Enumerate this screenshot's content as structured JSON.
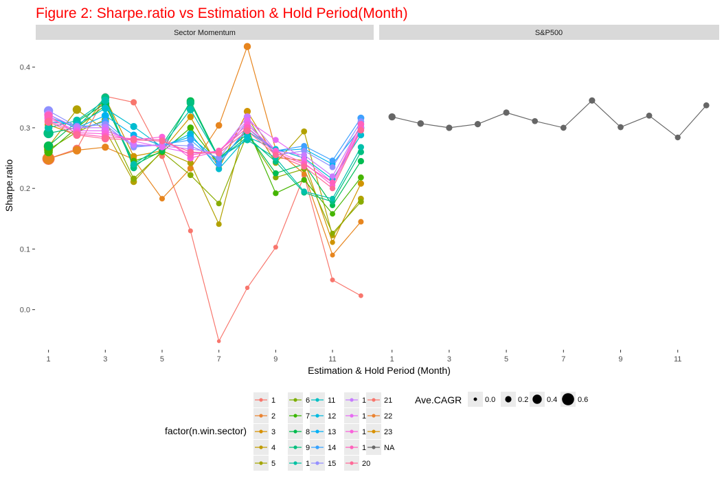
{
  "title": "Figure 2: Sharpe.ratio vs Estimation & Hold Period(Month)",
  "colors": {
    "title": "#ff0000",
    "strip_bg": "#d9d9d9",
    "legend_key_bg": "#ebebeb",
    "na_series": "#666666"
  },
  "chart_data": {
    "type": "line",
    "facets": [
      "Sector Momentum",
      "S&P500"
    ],
    "xlabel": "Estimation & Hold Period (Month)",
    "ylabel": "Sharpe.ratio",
    "x": [
      1,
      2,
      3,
      4,
      5,
      6,
      7,
      8,
      9,
      10,
      11,
      12
    ],
    "x_ticks": [
      "1",
      "3",
      "5",
      "7",
      "9",
      "11"
    ],
    "y_ticks": [
      "0.0",
      "0.1",
      "0.2",
      "0.3",
      "0.4"
    ],
    "xlim": [
      0.55,
      12.45
    ],
    "ylim": [
      -0.065,
      0.445
    ],
    "grid": false,
    "legend_position": "bottom",
    "color_legend_title": "factor(n.win.sector)",
    "size_legend_title": "Ave.CAGR",
    "size_legend_labels": [
      "0.0",
      "0.2",
      "0.4",
      "0.6"
    ],
    "series": [
      {
        "name": "1",
        "facet": "Sector Momentum",
        "color": "#F8766D",
        "values": [
          0.249,
          0.265,
          0.352,
          0.342,
          0.253,
          0.13,
          -0.052,
          0.036,
          0.103,
          0.221,
          0.049,
          0.023
        ],
        "cagr": [
          0.62,
          0.35,
          0.2,
          0.2,
          0.15,
          0.1,
          0.03,
          0.07,
          0.1,
          0.12,
          0.1,
          0.09
        ]
      },
      {
        "name": "2",
        "facet": "Sector Momentum",
        "color": "#E7851E",
        "values": [
          0.249,
          0.263,
          0.268,
          0.248,
          0.183,
          0.233,
          0.304,
          0.434,
          0.264,
          0.224,
          0.09,
          0.145
        ],
        "cagr": [
          0.55,
          0.35,
          0.26,
          0.2,
          0.15,
          0.2,
          0.22,
          0.26,
          0.15,
          0.12,
          0.1,
          0.15
        ]
      },
      {
        "name": "3",
        "facet": "Sector Momentum",
        "color": "#D09400",
        "values": [
          0.305,
          0.288,
          0.349,
          0.253,
          0.262,
          0.318,
          0.233,
          0.327,
          0.251,
          0.246,
          0.111,
          0.208
        ],
        "cagr": [
          0.3,
          0.28,
          0.3,
          0.22,
          0.2,
          0.22,
          0.2,
          0.25,
          0.18,
          0.15,
          0.12,
          0.2
        ]
      },
      {
        "name": "4",
        "facet": "Sector Momentum",
        "color": "#B2A100",
        "values": [
          0.269,
          0.33,
          0.296,
          0.211,
          0.262,
          0.242,
          0.141,
          0.318,
          0.242,
          0.294,
          0.122,
          0.183
        ],
        "cagr": [
          0.42,
          0.35,
          0.28,
          0.22,
          0.2,
          0.2,
          0.15,
          0.24,
          0.17,
          0.18,
          0.12,
          0.18
        ]
      },
      {
        "name": "5",
        "facet": "Sector Momentum",
        "color": "#89AC00",
        "values": [
          0.264,
          0.293,
          0.313,
          0.216,
          0.26,
          0.222,
          0.175,
          0.29,
          0.218,
          0.232,
          0.126,
          0.178
        ],
        "cagr": [
          0.38,
          0.3,
          0.28,
          0.2,
          0.2,
          0.18,
          0.15,
          0.22,
          0.16,
          0.16,
          0.12,
          0.17
        ]
      },
      {
        "name": "6",
        "facet": "Sector Momentum",
        "color": "#45B500",
        "values": [
          0.26,
          0.3,
          0.337,
          0.245,
          0.26,
          0.3,
          0.24,
          0.3,
          0.192,
          0.214,
          0.158,
          0.218
        ],
        "cagr": [
          0.35,
          0.3,
          0.3,
          0.22,
          0.2,
          0.22,
          0.18,
          0.22,
          0.16,
          0.16,
          0.14,
          0.18
        ]
      },
      {
        "name": "7",
        "facet": "Sector Momentum",
        "color": "#00BC51",
        "values": [
          0.27,
          0.31,
          0.34,
          0.238,
          0.262,
          0.344,
          0.25,
          0.29,
          0.225,
          0.24,
          0.172,
          0.245
        ],
        "cagr": [
          0.4,
          0.3,
          0.32,
          0.24,
          0.2,
          0.3,
          0.2,
          0.24,
          0.18,
          0.18,
          0.15,
          0.2
        ]
      },
      {
        "name": "8",
        "facet": "Sector Momentum",
        "color": "#00BF80",
        "values": [
          0.291,
          0.3,
          0.35,
          0.234,
          0.272,
          0.341,
          0.248,
          0.285,
          0.244,
          0.193,
          0.178,
          0.26
        ],
        "cagr": [
          0.45,
          0.3,
          0.32,
          0.24,
          0.2,
          0.3,
          0.2,
          0.24,
          0.18,
          0.17,
          0.16,
          0.2
        ]
      },
      {
        "name": "9",
        "facet": "Sector Momentum",
        "color": "#00C0AB",
        "values": [
          0.3,
          0.312,
          0.345,
          0.24,
          0.27,
          0.33,
          0.25,
          0.28,
          0.25,
          0.195,
          0.183,
          0.268
        ],
        "cagr": [
          0.3,
          0.3,
          0.3,
          0.22,
          0.2,
          0.28,
          0.2,
          0.24,
          0.18,
          0.17,
          0.16,
          0.2
        ]
      },
      {
        "name": "10",
        "facet": "Sector Momentum",
        "color": "#00BCD0",
        "values": [
          0.31,
          0.305,
          0.332,
          0.302,
          0.268,
          0.29,
          0.232,
          0.285,
          0.265,
          0.25,
          0.215,
          0.288
        ],
        "cagr": [
          0.3,
          0.28,
          0.28,
          0.25,
          0.2,
          0.24,
          0.2,
          0.24,
          0.18,
          0.18,
          0.18,
          0.22
        ]
      },
      {
        "name": "11",
        "facet": "Sector Momentum",
        "color": "#00B3F0",
        "values": [
          0.318,
          0.3,
          0.32,
          0.288,
          0.27,
          0.285,
          0.245,
          0.295,
          0.262,
          0.265,
          0.24,
          0.3
        ],
        "cagr": [
          0.3,
          0.28,
          0.28,
          0.24,
          0.2,
          0.24,
          0.2,
          0.24,
          0.18,
          0.18,
          0.18,
          0.24
        ]
      },
      {
        "name": "12",
        "facet": "Sector Momentum",
        "color": "#3EA1FF",
        "values": [
          0.322,
          0.298,
          0.31,
          0.27,
          0.272,
          0.28,
          0.24,
          0.3,
          0.262,
          0.27,
          0.246,
          0.316
        ],
        "cagr": [
          0.32,
          0.28,
          0.28,
          0.24,
          0.2,
          0.24,
          0.2,
          0.24,
          0.18,
          0.18,
          0.18,
          0.24
        ]
      },
      {
        "name": "13",
        "facet": "Sector Momentum",
        "color": "#8F91FF",
        "values": [
          0.328,
          0.302,
          0.305,
          0.268,
          0.272,
          0.27,
          0.25,
          0.31,
          0.255,
          0.262,
          0.235,
          0.31
        ],
        "cagr": [
          0.4,
          0.28,
          0.28,
          0.22,
          0.2,
          0.22,
          0.2,
          0.24,
          0.18,
          0.18,
          0.18,
          0.22
        ]
      },
      {
        "name": "14",
        "facet": "Sector Momentum",
        "color": "#C77CFF",
        "values": [
          0.322,
          0.3,
          0.3,
          0.272,
          0.27,
          0.265,
          0.258,
          0.318,
          0.262,
          0.255,
          0.22,
          0.305
        ],
        "cagr": [
          0.36,
          0.28,
          0.28,
          0.22,
          0.2,
          0.22,
          0.2,
          0.26,
          0.18,
          0.18,
          0.16,
          0.22
        ]
      },
      {
        "name": "15",
        "facet": "Sector Momentum",
        "color": "#E86BF3",
        "values": [
          0.316,
          0.295,
          0.295,
          0.278,
          0.268,
          0.258,
          0.26,
          0.312,
          0.28,
          0.248,
          0.21,
          0.3
        ],
        "cagr": [
          0.34,
          0.28,
          0.28,
          0.22,
          0.2,
          0.22,
          0.2,
          0.24,
          0.18,
          0.18,
          0.16,
          0.22
        ]
      },
      {
        "name": "16",
        "facet": "Sector Momentum",
        "color": "#FA62DB",
        "values": [
          0.312,
          0.292,
          0.29,
          0.28,
          0.285,
          0.25,
          0.262,
          0.305,
          0.262,
          0.242,
          0.205,
          0.298
        ],
        "cagr": [
          0.32,
          0.28,
          0.28,
          0.22,
          0.2,
          0.22,
          0.2,
          0.24,
          0.18,
          0.18,
          0.16,
          0.22
        ]
      },
      {
        "name": "17",
        "facet": "Sector Momentum",
        "color": "#FF61BC",
        "values": [
          0.32,
          0.29,
          0.285,
          0.282,
          0.28,
          0.255,
          0.262,
          0.3,
          0.258,
          0.24,
          0.21,
          0.306
        ],
        "cagr": [
          0.34,
          0.28,
          0.28,
          0.22,
          0.2,
          0.22,
          0.2,
          0.24,
          0.18,
          0.18,
          0.16,
          0.22
        ]
      },
      {
        "name": "18",
        "facet": "Sector Momentum",
        "color": "#FF6A98",
        "values": [
          0.31,
          0.288,
          0.282,
          0.28,
          0.278,
          0.26,
          0.258,
          0.295,
          0.255,
          0.236,
          0.2,
          0.296
        ],
        "cagr": [
          0.32,
          0.28,
          0.28,
          0.22,
          0.2,
          0.22,
          0.2,
          0.24,
          0.18,
          0.18,
          0.16,
          0.22
        ]
      },
      {
        "name": "NA",
        "facet": "S&P500",
        "color": "#666666",
        "values": [
          0.318,
          0.307,
          0.3,
          0.306,
          0.325,
          0.311,
          0.3,
          0.345,
          0.301,
          0.32,
          0.284,
          0.337
        ],
        "cagr": [
          0.26,
          0.22,
          0.2,
          0.2,
          0.2,
          0.18,
          0.18,
          0.2,
          0.18,
          0.18,
          0.16,
          0.18
        ]
      }
    ],
    "legend_entries": [
      {
        "label": "1",
        "color": "#F8766D"
      },
      {
        "label": "2",
        "color": "#EA8331"
      },
      {
        "label": "3",
        "color": "#D89000"
      },
      {
        "label": "4",
        "color": "#C09B00"
      },
      {
        "label": "5",
        "color": "#A3A500"
      },
      {
        "label": "6",
        "color": "#7CAE00"
      },
      {
        "label": "7",
        "color": "#39B600"
      },
      {
        "label": "8",
        "color": "#00BB4E"
      },
      {
        "label": "9",
        "color": "#00BF7D"
      },
      {
        "label": "10",
        "color": "#00C1A3"
      },
      {
        "label": "11",
        "color": "#00BFC4"
      },
      {
        "label": "12",
        "color": "#00BAE0"
      },
      {
        "label": "13",
        "color": "#00B0F6"
      },
      {
        "label": "14",
        "color": "#35A2FF"
      },
      {
        "label": "15",
        "color": "#9590FF"
      },
      {
        "label": "16",
        "color": "#C77CFF"
      },
      {
        "label": "17",
        "color": "#E76BF3"
      },
      {
        "label": "18",
        "color": "#FA62DB"
      },
      {
        "label": "19",
        "color": "#FF62BC"
      },
      {
        "label": "20",
        "color": "#FF6A98"
      },
      {
        "label": "21",
        "color": "#F8766D"
      },
      {
        "label": "22",
        "color": "#EA8331"
      },
      {
        "label": "23",
        "color": "#D89000"
      },
      {
        "label": "NA",
        "color": "#666666"
      }
    ]
  }
}
